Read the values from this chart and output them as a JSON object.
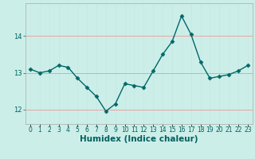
{
  "x": [
    0,
    1,
    2,
    3,
    4,
    5,
    6,
    7,
    8,
    9,
    10,
    11,
    12,
    13,
    14,
    15,
    16,
    17,
    18,
    19,
    20,
    21,
    22,
    23
  ],
  "y": [
    13.1,
    13.0,
    13.05,
    13.2,
    13.15,
    12.85,
    12.6,
    12.35,
    11.95,
    12.15,
    12.7,
    12.65,
    12.6,
    13.05,
    13.5,
    13.85,
    14.55,
    14.05,
    13.3,
    12.85,
    12.9,
    12.95,
    13.05,
    13.2
  ],
  "line_color": "#006868",
  "marker": "D",
  "marker_size": 2.5,
  "bg_color": "#cceee8",
  "xlabel": "Humidex (Indice chaleur)",
  "xlabel_color": "#006060",
  "xlabel_fontsize": 7.5,
  "tick_color": "#006060",
  "tick_fontsize": 6,
  "ylim": [
    11.6,
    14.9
  ],
  "yticks": [
    12,
    13,
    14
  ],
  "xlim": [
    -0.5,
    23.5
  ],
  "red_grid_color": "#ee9999",
  "white_grid_color": "#c8e8e4"
}
